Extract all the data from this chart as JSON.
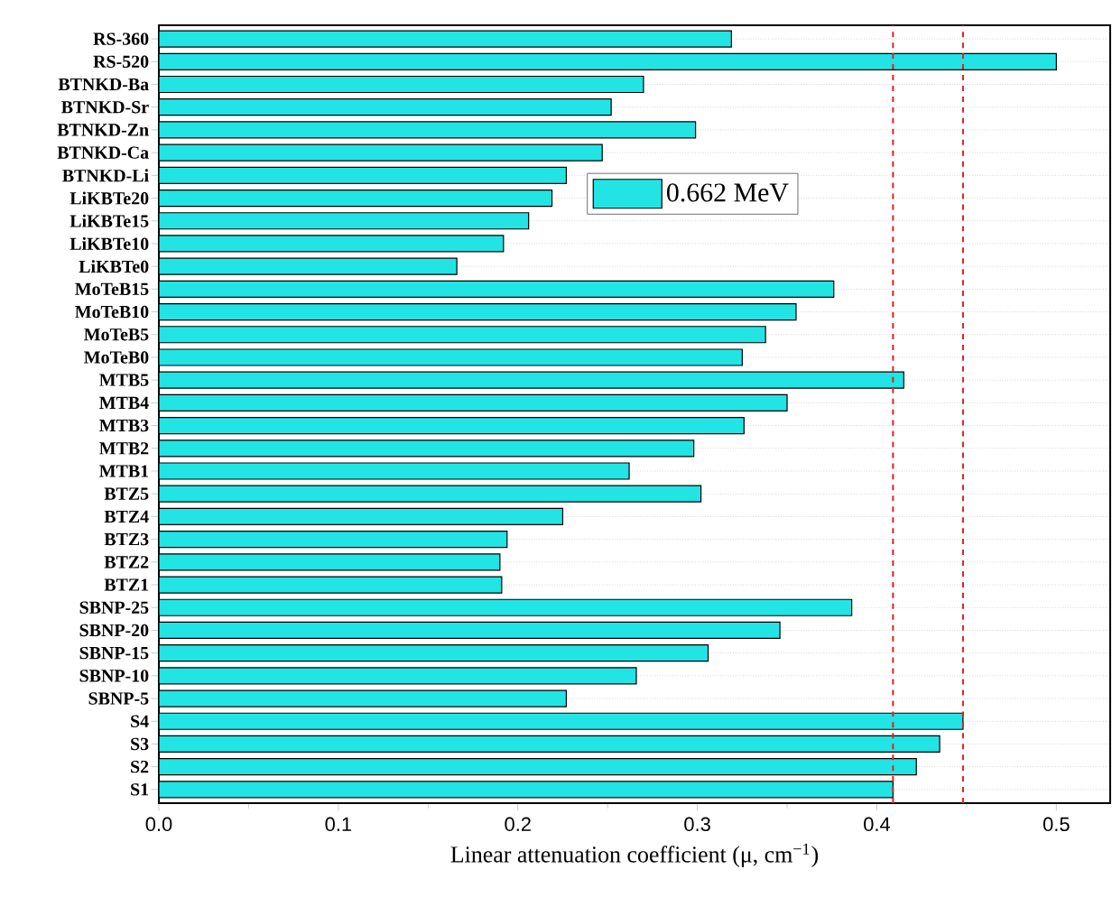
{
  "chart_data": {
    "type": "bar",
    "orientation": "horizontal",
    "xlabel": "Linear attenuation coefficient (μ, cm$^{−1}$)",
    "categories": [
      "RS-360",
      "RS-520",
      "BTNKD-Ba",
      "BTNKD-Sr",
      "BTNKD-Zn",
      "BTNKD-Ca",
      "BTNKD-Li",
      "LiKBTe20",
      "LiKBTe15",
      "LiKBTe10",
      "LiKBTe0",
      "MoTeB15",
      "MoTeB10",
      "MoTeB5",
      "MoTeB0",
      "MTB5",
      "MTB4",
      "MTB3",
      "MTB2",
      "MTB1",
      "BTZ5",
      "BTZ4",
      "BTZ3",
      "BTZ2",
      "BTZ1",
      "SBNP-25",
      "SBNP-20",
      "SBNP-15",
      "SBNP-10",
      "SBNP-5",
      "S4",
      "S3",
      "S2",
      "S1"
    ],
    "series": [
      {
        "name": "0.662 MeV",
        "color": "#22e4e4",
        "values": [
          0.319,
          0.5,
          0.27,
          0.252,
          0.299,
          0.247,
          0.227,
          0.219,
          0.206,
          0.192,
          0.166,
          0.376,
          0.355,
          0.338,
          0.325,
          0.415,
          0.35,
          0.326,
          0.298,
          0.262,
          0.302,
          0.225,
          0.194,
          0.19,
          0.191,
          0.386,
          0.346,
          0.306,
          0.266,
          0.227,
          0.448,
          0.435,
          0.422,
          0.409
        ]
      }
    ],
    "xlim": [
      0,
      0.53
    ],
    "xticks": [
      {
        "value": 0,
        "label": "0.0"
      },
      0.1,
      0.2,
      0.3,
      0.4,
      0.5
    ],
    "ref_lines": [
      {
        "axis": "x",
        "value": 0.409,
        "color": "#e02020",
        "line_style": "dashed"
      },
      {
        "axis": "x",
        "value": 0.448,
        "color": "#e02020",
        "line_style": "dashed"
      }
    ],
    "grid": "y",
    "legend": "top"
  }
}
